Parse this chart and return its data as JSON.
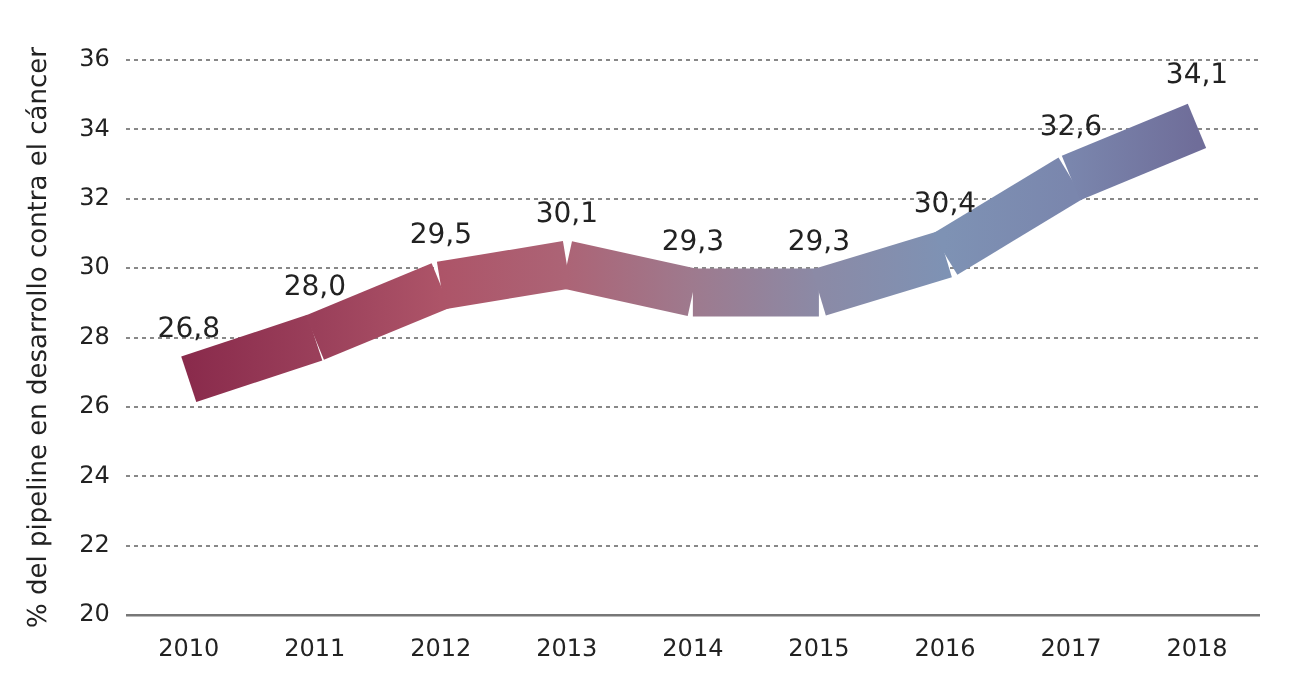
{
  "chart_data": {
    "type": "line",
    "ylabel": "% del pipeline en desarrollo contra el cáncer",
    "categories": [
      "2010",
      "2011",
      "2012",
      "2013",
      "2014",
      "2015",
      "2016",
      "2017",
      "2018"
    ],
    "series": [
      {
        "values": [
          26.8,
          28.0,
          29.5,
          30.1,
          29.3,
          29.3,
          30.4,
          32.6,
          34.1
        ],
        "colors": [
          "#8a2b4c",
          "#9a3f5a",
          "#ad5468",
          "#ac6476",
          "#9e7a8e",
          "#8b8aa6",
          "#7e92b4",
          "#7a86ad",
          "#6f6d99"
        ],
        "value_labels": [
          "26,8",
          "28,0",
          "29,5",
          "30,1",
          "29,3",
          "29,3",
          "30,4",
          "32,6",
          "34,1"
        ]
      }
    ],
    "ylim": [
      20,
      36
    ],
    "yticks": [
      20,
      22,
      24,
      26,
      28,
      30,
      32,
      34,
      36
    ],
    "grid": "y",
    "legend": false,
    "marker": "none",
    "line_style": "solid"
  }
}
